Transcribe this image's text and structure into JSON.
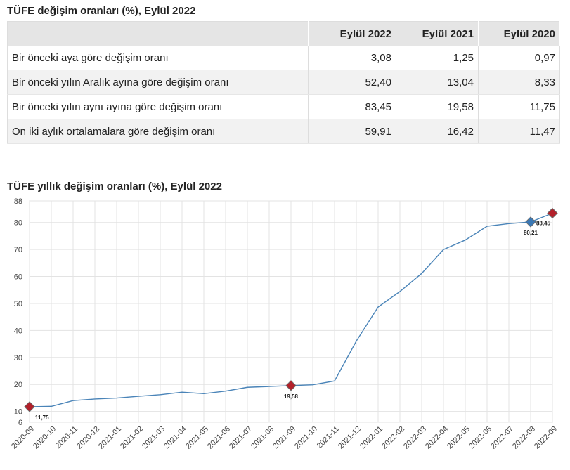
{
  "table": {
    "title": "TÜFE değişim oranları (%), Eylül 2022",
    "columns": [
      "",
      "Eylül 2022",
      "Eylül 2021",
      "Eylül 2020"
    ],
    "rows": [
      {
        "label": "Bir önceki aya göre değişim oranı",
        "values": [
          "3,08",
          "1,25",
          "0,97"
        ]
      },
      {
        "label": "Bir önceki yılın Aralık ayına göre değişim oranı",
        "values": [
          "52,40",
          "13,04",
          "8,33"
        ]
      },
      {
        "label": "Bir önceki yılın aynı ayına göre değişim oranı",
        "values": [
          "83,45",
          "19,58",
          "11,75"
        ]
      },
      {
        "label": "On iki aylık ortalamalara göre değişim oranı",
        "values": [
          "59,91",
          "16,42",
          "11,47"
        ]
      }
    ]
  },
  "chart_data": {
    "type": "line",
    "title": "TÜFE yıllık değişim oranları (%), Eylül 2022",
    "xlabel": "",
    "ylabel": "",
    "ylim": [
      6,
      88
    ],
    "yticks": [
      6,
      10,
      20,
      30,
      40,
      50,
      60,
      70,
      80,
      88
    ],
    "grid": true,
    "x": [
      "2020-09",
      "2020-10",
      "2020-11",
      "2020-12",
      "2021-01",
      "2021-02",
      "2021-03",
      "2021-04",
      "2021-05",
      "2021-06",
      "2021-07",
      "2021-08",
      "2021-09",
      "2021-10",
      "2021-11",
      "2021-12",
      "2022-01",
      "2022-02",
      "2022-03",
      "2022-04",
      "2022-05",
      "2022-06",
      "2022-07",
      "2022-08",
      "2022-09"
    ],
    "series": [
      {
        "name": "",
        "color": "#4a84b8",
        "values": [
          11.75,
          11.89,
          14.03,
          14.6,
          14.97,
          15.61,
          16.19,
          17.14,
          16.59,
          17.53,
          18.95,
          19.25,
          19.58,
          19.89,
          21.31,
          36.08,
          48.69,
          54.44,
          61.14,
          69.97,
          73.5,
          78.62,
          79.6,
          80.21,
          83.45
        ]
      }
    ],
    "markers": [
      {
        "index": 0,
        "label": "11,75",
        "color": "#b3202a"
      },
      {
        "index": 12,
        "label": "19,58",
        "color": "#b3202a"
      },
      {
        "index": 23,
        "label": "80,21",
        "color": "#3a78b5"
      },
      {
        "index": 24,
        "label": "83,45",
        "color": "#b3202a"
      }
    ]
  }
}
